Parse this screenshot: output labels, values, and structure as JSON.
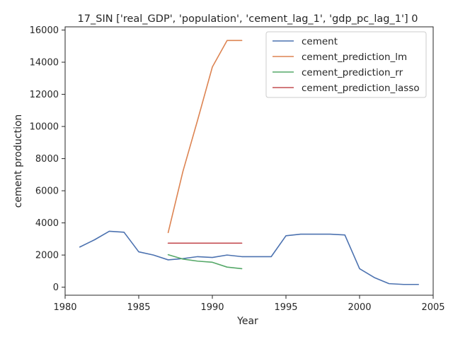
{
  "chart_data": {
    "type": "line",
    "title": "17_SIN ['real_GDP', 'population', 'cement_lag_1', 'gdp_pc_lag_1'] 0",
    "xlabel": "Year",
    "ylabel": "cement production",
    "xlim": [
      1980,
      2005
    ],
    "ylim": [
      -500,
      16200
    ],
    "xticks": [
      1980,
      1985,
      1990,
      1995,
      2000,
      2005
    ],
    "yticks": [
      0,
      2000,
      4000,
      6000,
      8000,
      10000,
      12000,
      14000,
      16000
    ],
    "grid": false,
    "legend_position": "top-right",
    "series": [
      {
        "name": "cement",
        "color": "#4c72b0",
        "x": [
          1981,
          1982,
          1983,
          1984,
          1985,
          1986,
          1987,
          1988,
          1989,
          1990,
          1991,
          1992,
          1993,
          1994,
          1995,
          1996,
          1997,
          1998,
          1999,
          2000,
          2001,
          2002,
          2003,
          2004
        ],
        "values": [
          2500,
          2950,
          3480,
          3420,
          2200,
          2000,
          1700,
          1780,
          1900,
          1850,
          2000,
          1900,
          1900,
          1900,
          3200,
          3300,
          3300,
          3300,
          3250,
          1150,
          600,
          220,
          170,
          170
        ]
      },
      {
        "name": "cement_prediction_lm",
        "color": "#dd8452",
        "x": [
          1987,
          1988,
          1989,
          1990,
          1991,
          1992
        ],
        "values": [
          3400,
          7200,
          10400,
          13700,
          15350,
          15350
        ]
      },
      {
        "name": "cement_prediction_rr",
        "color": "#55a868",
        "x": [
          1987,
          1988,
          1989,
          1990,
          1991,
          1992
        ],
        "values": [
          2020,
          1750,
          1620,
          1550,
          1250,
          1150
        ]
      },
      {
        "name": "cement_prediction_lasso",
        "color": "#c44e52",
        "x": [
          1987,
          1988,
          1989,
          1990,
          1991,
          1992
        ],
        "values": [
          2740,
          2740,
          2740,
          2740,
          2740,
          2740
        ]
      }
    ]
  }
}
